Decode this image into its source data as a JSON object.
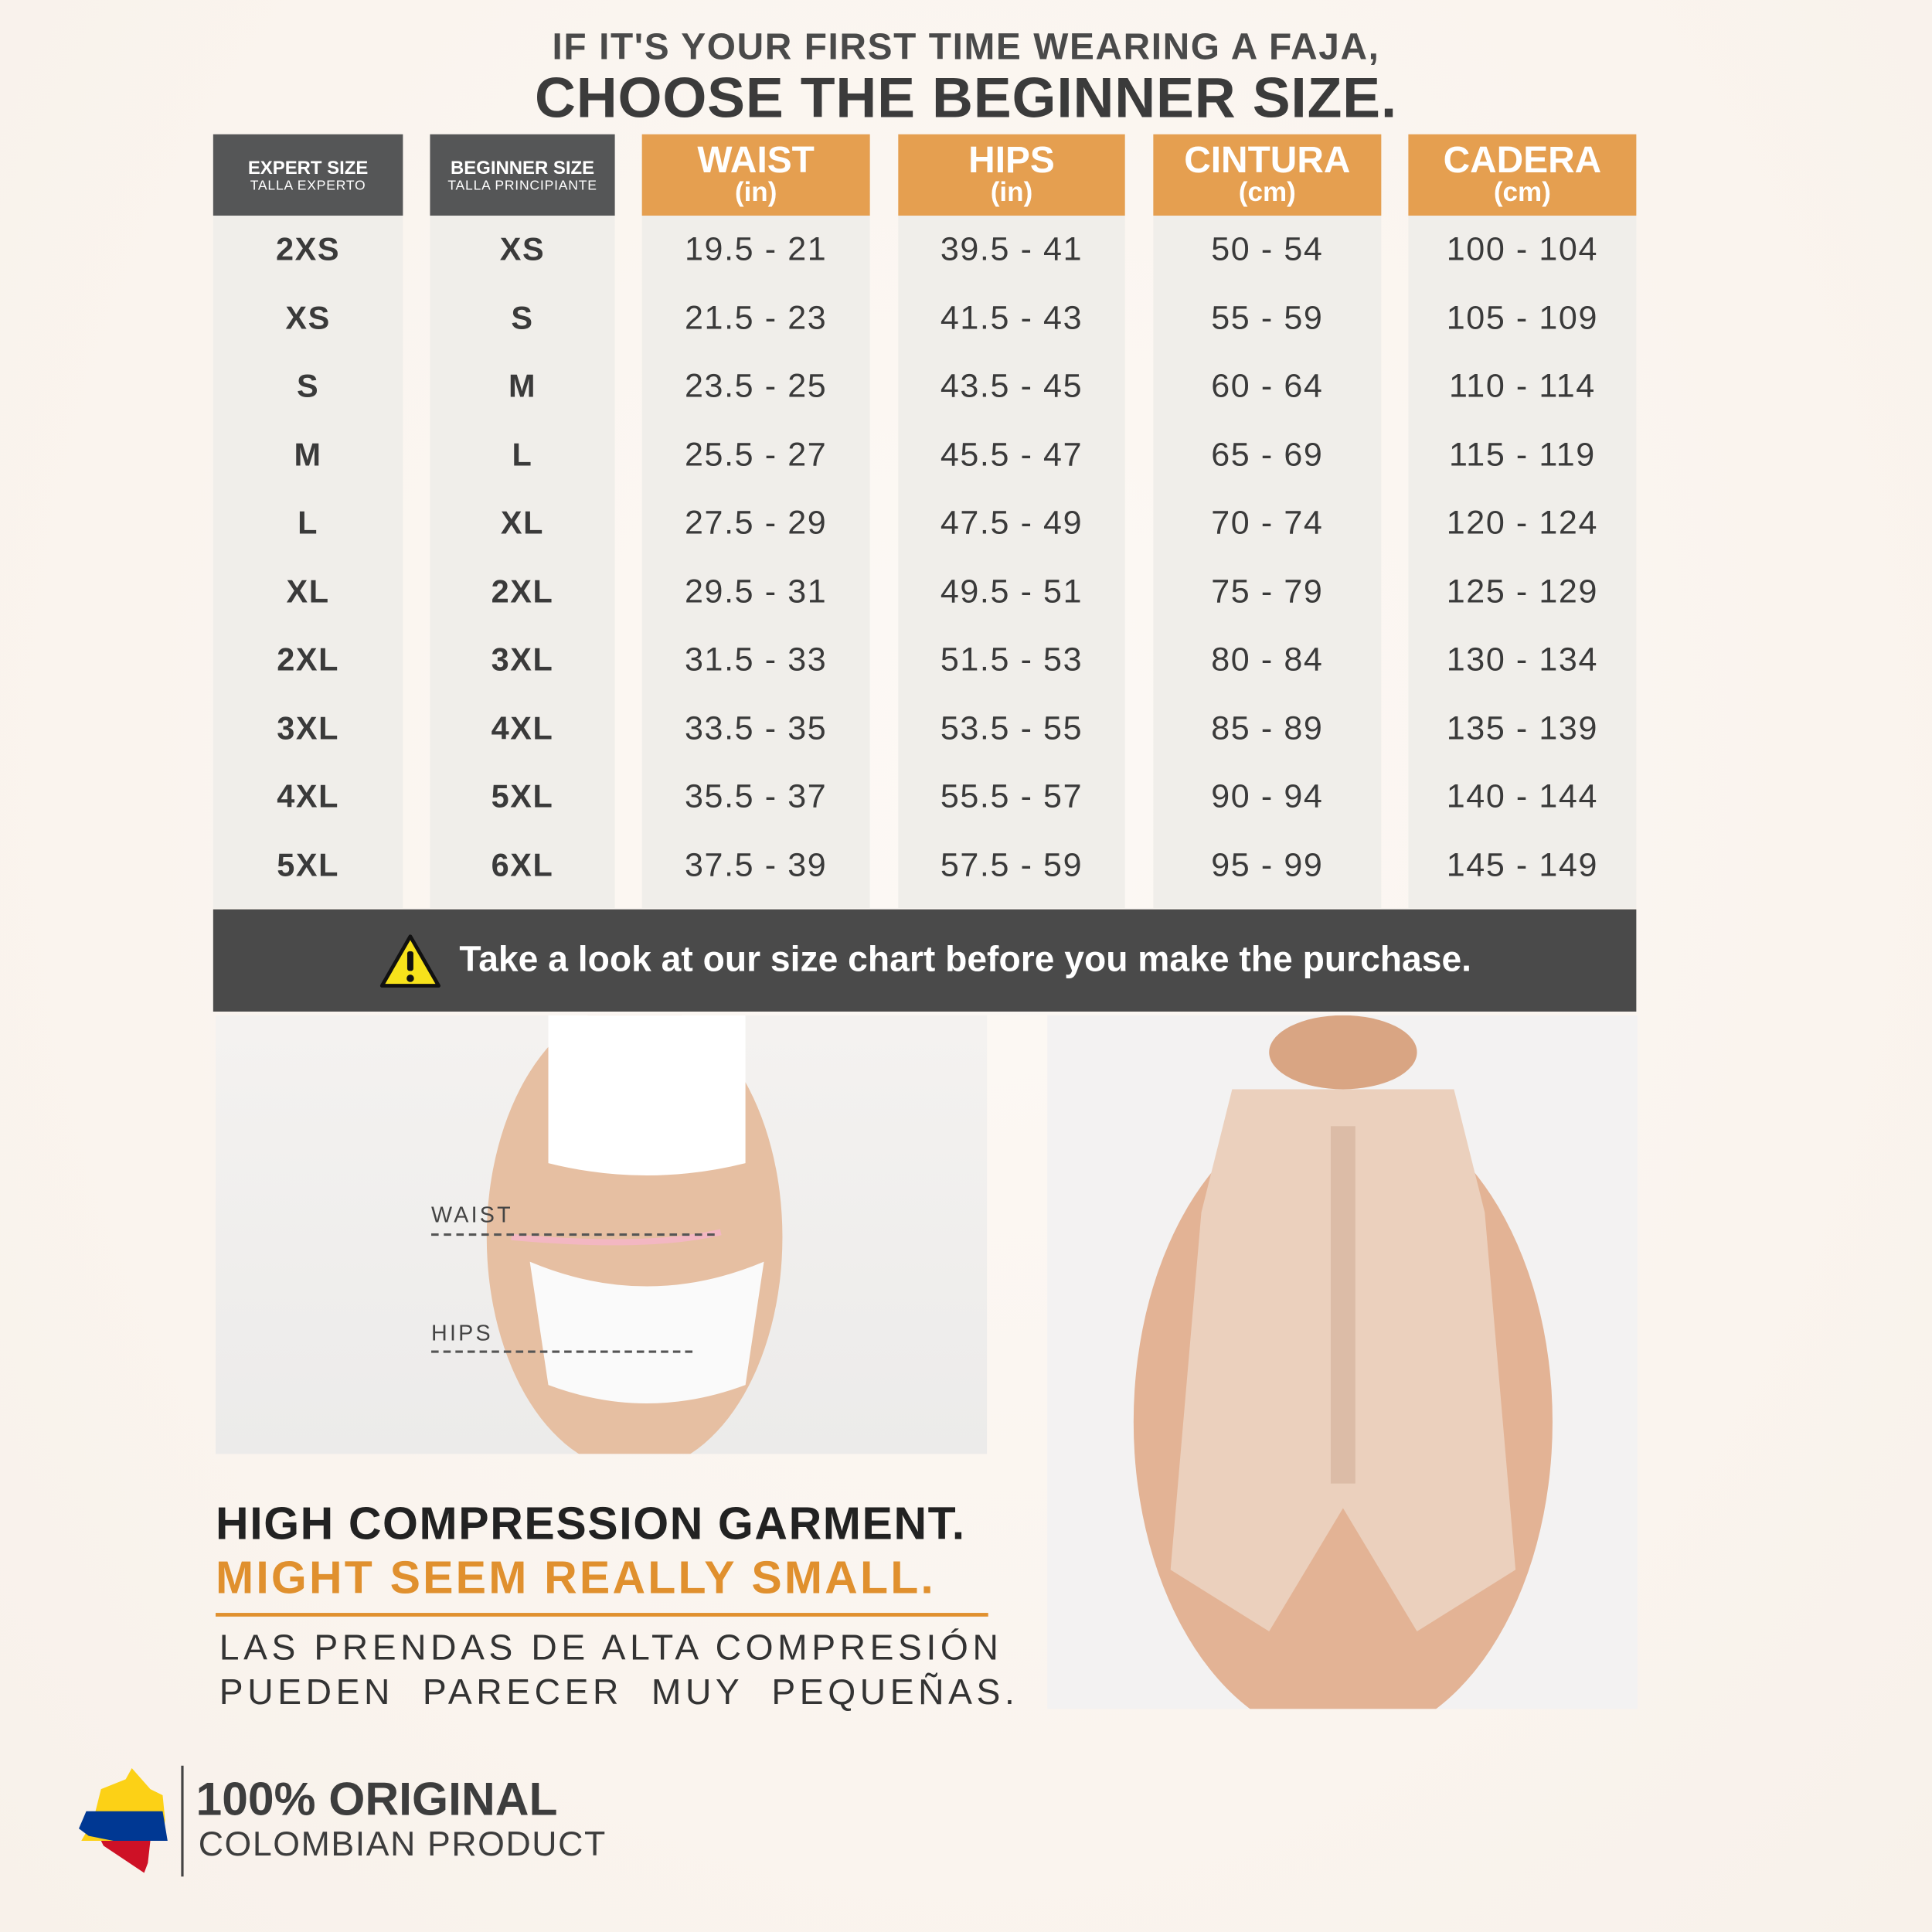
{
  "headline": {
    "line1": "IF IT'S YOUR FIRST TIME WEARING A FAJA,",
    "line2": "CHOOSE THE BEGINNER SIZE."
  },
  "table": {
    "headers": [
      {
        "title": "EXPERT SIZE",
        "subtitle": "TALLA EXPERTO"
      },
      {
        "title": "BEGINNER SIZE",
        "subtitle": "TALLA PRINCIPIANTE"
      },
      {
        "title": "WAIST",
        "subtitle": "(in)"
      },
      {
        "title": "HIPS",
        "subtitle": "(in)"
      },
      {
        "title": "CINTURA",
        "subtitle": "(cm)"
      },
      {
        "title": "CADERA",
        "subtitle": "(cm)"
      }
    ],
    "columns": [
      [
        "2XS",
        "XS",
        "S",
        "M",
        "L",
        "XL",
        "2XL",
        "3XL",
        "4XL",
        "5XL"
      ],
      [
        "XS",
        "S",
        "M",
        "L",
        "XL",
        "2XL",
        "3XL",
        "4XL",
        "5XL",
        "6XL"
      ],
      [
        "19.5 - 21",
        "21.5 - 23",
        "23.5 - 25",
        "25.5 - 27",
        "27.5 - 29",
        "29.5 - 31",
        "31.5 - 33",
        "33.5 - 35",
        "35.5 - 37",
        "37.5 - 39"
      ],
      [
        "39.5 - 41",
        "41.5 - 43",
        "43.5 - 45",
        "45.5 - 47",
        "47.5 - 49",
        "49.5 - 51",
        "51.5 - 53",
        "53.5 - 55",
        "55.5 - 57",
        "57.5 - 59"
      ],
      [
        "50 - 54",
        "55 - 59",
        "60 - 64",
        "65 - 69",
        "70 - 74",
        "75 - 79",
        "80 - 84",
        "85 - 89",
        "90 - 94",
        "95 - 99"
      ],
      [
        "100 - 104",
        "105 - 109",
        "110 - 114",
        "115 - 119",
        "120 - 124",
        "125 - 129",
        "130 - 134",
        "135 - 139",
        "140 - 144",
        "145 - 149"
      ]
    ]
  },
  "banner": {
    "icon": "warning-icon",
    "text": "Take a look at our size chart before you make the purchase."
  },
  "measure_image": {
    "waist_label": "WAIST",
    "hips_label": "HIPS"
  },
  "notice": {
    "line1": "HIGH COMPRESSION GARMENT.",
    "line2": "MIGHT SEEM REALLY SMALL.",
    "spanish1": "LAS PRENDAS DE ALTA COMPRESIÓN",
    "spanish2": "PUEDEN  PARECER  MUY  PEQUEÑAS."
  },
  "footer": {
    "title": "100% ORIGINAL",
    "subtitle": "COLOMBIAN PRODUCT"
  },
  "colors": {
    "accent": "#e59f50",
    "dark": "#555657",
    "banner": "#4a4a4a",
    "orange_text": "#e0902e"
  }
}
